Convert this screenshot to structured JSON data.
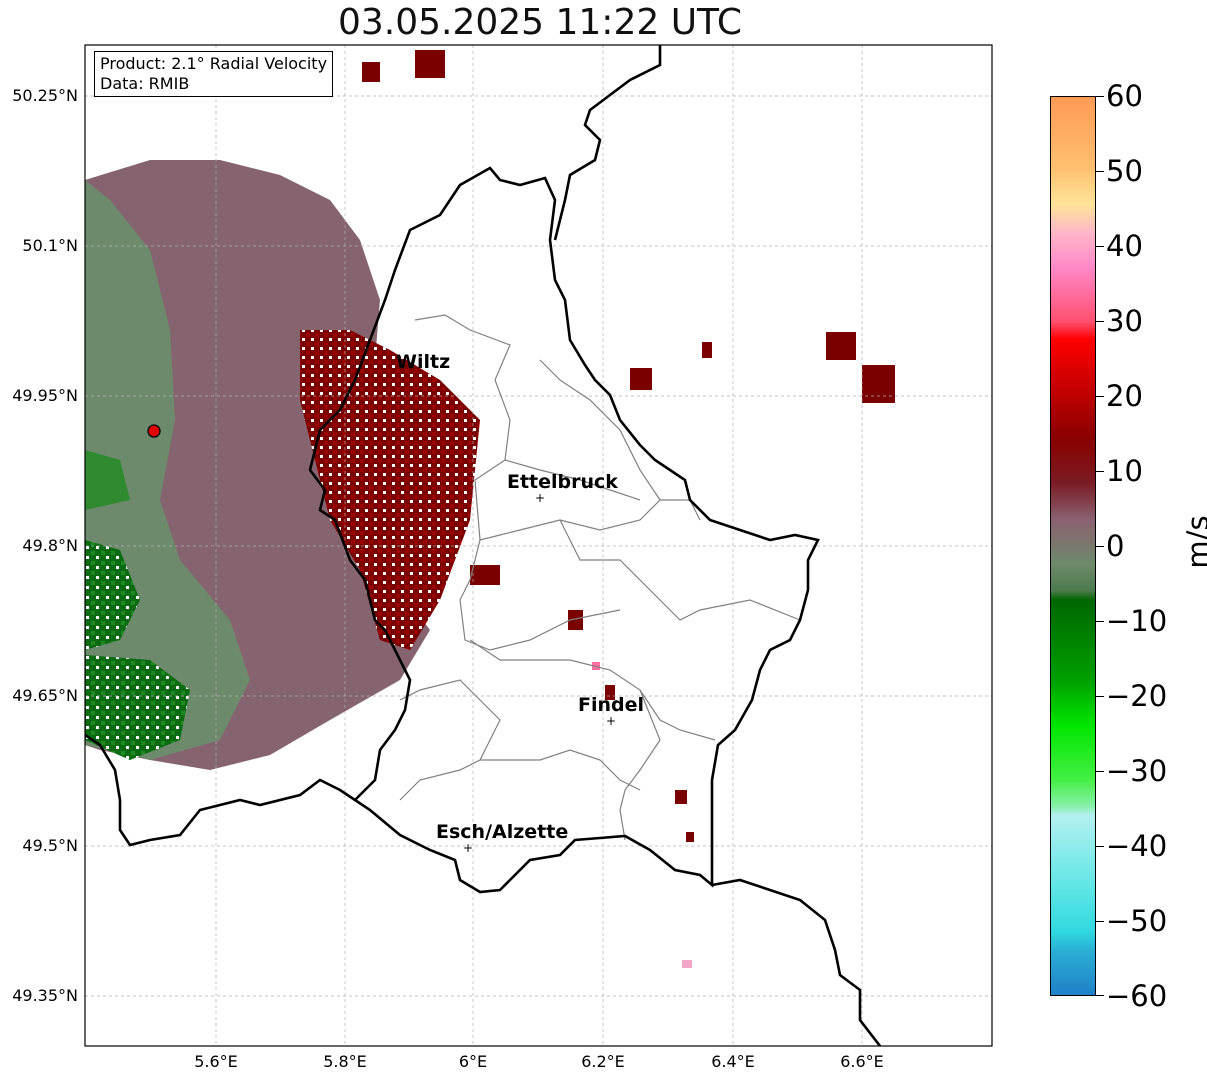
{
  "title": "03.05.2025 11:22 UTC",
  "info": {
    "product_line": "Product: 2.1° Radial Velocity",
    "data_line": "Data: RMIB"
  },
  "axes": {
    "lat_labels": [
      "50.25°N",
      "50.1°N",
      "49.95°N",
      "49.8°N",
      "49.65°N",
      "49.5°N",
      "49.35°N"
    ],
    "lon_labels": [
      "5.6°E",
      "5.8°E",
      "6°E",
      "6.2°E",
      "6.4°E",
      "6.6°E"
    ],
    "gridlines": true
  },
  "places": [
    {
      "name": "Wiltz"
    },
    {
      "name": "Ettelbruck"
    },
    {
      "name": "Findel"
    },
    {
      "name": "Esch/Alzette"
    }
  ],
  "colorbar": {
    "unit": "m/s",
    "ticks": [
      "60",
      "50",
      "40",
      "30",
      "20",
      "10",
      "0",
      "−10",
      "−20",
      "−30",
      "−40",
      "−50",
      "−60"
    ],
    "range": [
      -60,
      60
    ]
  },
  "colors": {
    "border": "#000000",
    "cantons": "#808080",
    "grid": "#b0b0b0",
    "radar_site": "#e00000"
  }
}
